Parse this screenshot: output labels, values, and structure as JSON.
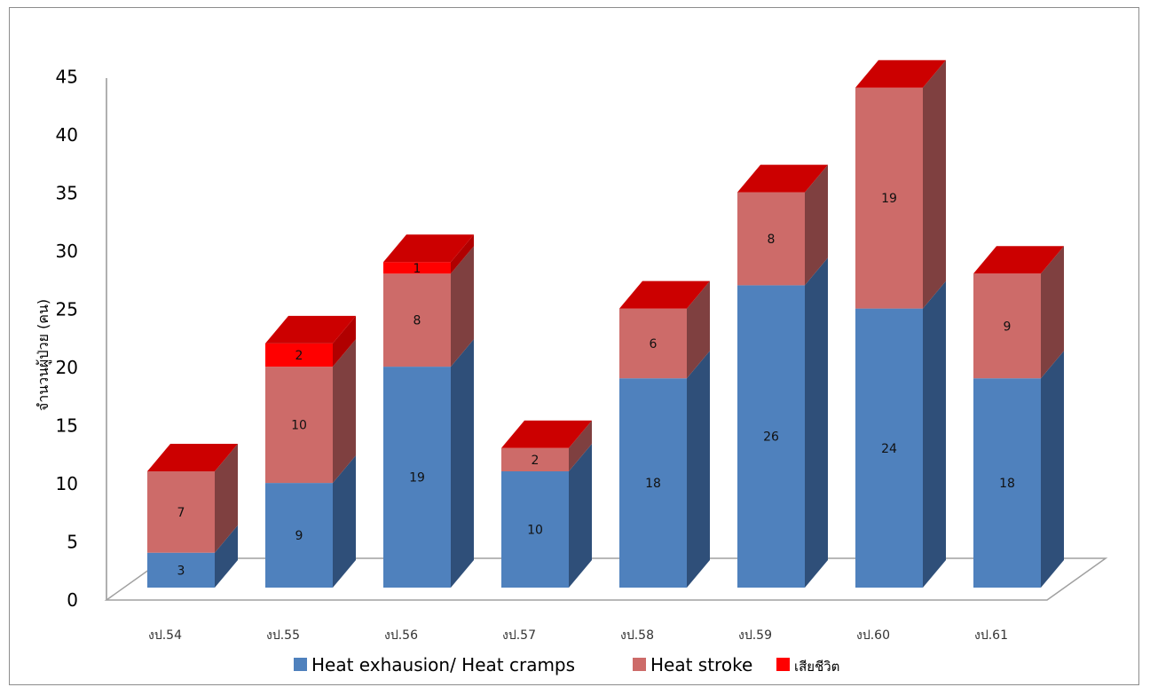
{
  "chart_data": {
    "type": "bar",
    "stacked": true,
    "style": "3d",
    "title": "",
    "xlabel": "",
    "ylabel": "จำนวนผู้ป่วย (คน)",
    "ylim": [
      0,
      45
    ],
    "yticks": [
      0,
      5,
      10,
      15,
      20,
      25,
      30,
      35,
      40,
      45
    ],
    "categories": [
      "งป.54",
      "งป.55",
      "งป.56",
      "งป.57",
      "งป.58",
      "งป.59",
      "งป.60",
      "งป.61"
    ],
    "series": [
      {
        "name": "Heat exhausion/ Heat cramps",
        "color": "#4f81bd",
        "side": "#2f4f79",
        "values": [
          3,
          9,
          19,
          10,
          18,
          26,
          24,
          18
        ]
      },
      {
        "name": "Heat stroke",
        "color": "#cd6b69",
        "side": "#7f4040",
        "values": [
          7,
          10,
          8,
          2,
          6,
          8,
          19,
          9
        ]
      },
      {
        "name": "เสียชีวิต",
        "color": "#ff0000",
        "side": "#b00000",
        "values": [
          0,
          2,
          1,
          0,
          0,
          0,
          0,
          0
        ]
      }
    ],
    "legend_position": "bottom",
    "grid": false
  }
}
